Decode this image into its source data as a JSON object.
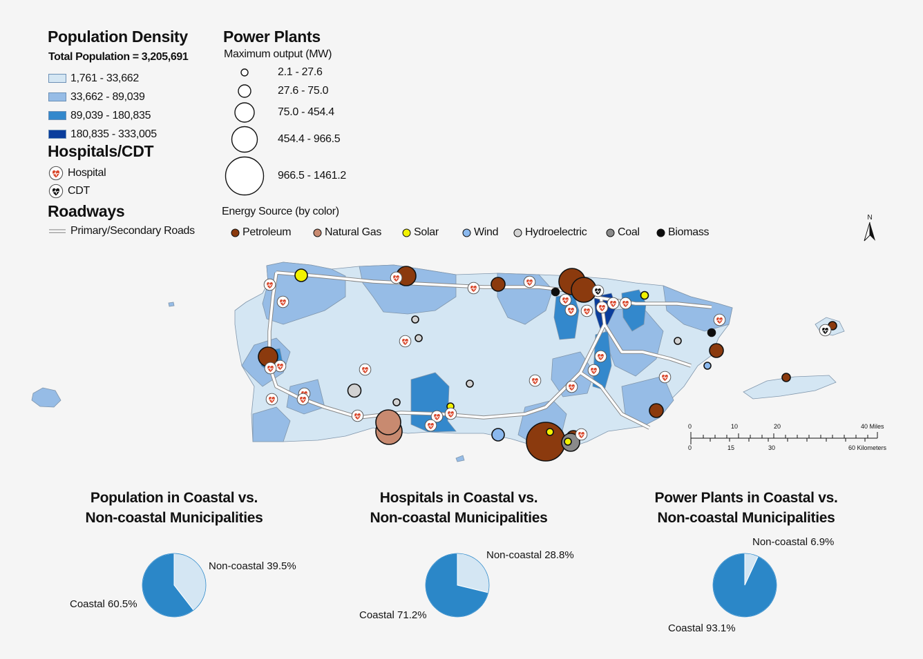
{
  "legend": {
    "population_density": {
      "title": "Population Density",
      "total": "Total Population = 3,205,691",
      "classes": [
        {
          "label": "1,761 - 33,662",
          "color": "#d4e6f3"
        },
        {
          "label": "33,662 - 89,039",
          "color": "#96bce6"
        },
        {
          "label": "89,039 - 180,835",
          "color": "#3388cc"
        },
        {
          "label": "180,835 - 333,005",
          "color": "#0a3d9c"
        }
      ]
    },
    "hospitals": {
      "title": "Hospitals/CDT",
      "items": [
        {
          "label": "Hospital",
          "icon": "hospital-heart-icon"
        },
        {
          "label": "CDT",
          "icon": "cdt-heart-icon"
        }
      ]
    },
    "roadways": {
      "title": "Roadways",
      "items": [
        {
          "label": "Primary/Secondary Roads",
          "icon": "road-line-icon"
        }
      ]
    },
    "power_plants": {
      "title": "Power Plants",
      "subtitle": "Maximum output (MW)",
      "sizes": [
        "2.1 - 27.6",
        "27.6 - 75.0",
        "75.0 - 454.4",
        "454.4 - 966.5",
        "966.5 - 1461.2"
      ]
    },
    "energy_source": {
      "title": "Energy Source (by color)",
      "items": [
        {
          "label": "Petroleum",
          "color": "#8b3a0e"
        },
        {
          "label": "Natural Gas",
          "color": "#c88a70"
        },
        {
          "label": "Solar",
          "color": "#f2f200"
        },
        {
          "label": "Wind",
          "color": "#8ab8ee"
        },
        {
          "label": "Hydroelectric",
          "color": "#d2d2d2"
        },
        {
          "label": "Coal",
          "color": "#8a8a8a"
        },
        {
          "label": "Biomass",
          "color": "#0d0d0d"
        }
      ]
    }
  },
  "north_arrow": {
    "label": "N",
    "icon": "north-arrow-icon"
  },
  "scale_bar": {
    "miles_ticks": [
      "0",
      "10",
      "20",
      "40 Miles"
    ],
    "km_ticks": [
      "0",
      "15",
      "30",
      "60 Kilometers"
    ]
  },
  "charts": {
    "chart_data": [
      {
        "type": "pie",
        "title": "Population in Coastal vs. Non-coastal Municipalities",
        "title_lines": [
          "Population in Coastal vs.",
          "Non-coastal Municipalities"
        ],
        "slices": [
          {
            "name": "Coastal",
            "value": 60.5,
            "label": "Coastal 60.5%",
            "color": "#2b87c8"
          },
          {
            "name": "Non-coastal",
            "value": 39.5,
            "label": "Non-coastal 39.5%",
            "color": "#d4e6f3"
          }
        ]
      },
      {
        "type": "pie",
        "title": "Hospitals in Coastal vs. Non-coastal Municipalities",
        "title_lines": [
          "Hospitals in Coastal vs.",
          "Non-coastal Municipalities"
        ],
        "slices": [
          {
            "name": "Coastal",
            "value": 71.2,
            "label": "Coastal 71.2%",
            "color": "#2b87c8"
          },
          {
            "name": "Non-coastal",
            "value": 28.8,
            "label": "Non-coastal 28.8%",
            "color": "#d4e6f3"
          }
        ]
      },
      {
        "type": "pie",
        "title": "Power Plants in Coastal vs. Non-coastal Municipalities",
        "title_lines": [
          "Power Plants in Coastal vs.",
          "Non-coastal Municipalities"
        ],
        "slices": [
          {
            "name": "Coastal",
            "value": 93.1,
            "label": "Coastal 93.1%",
            "color": "#2b87c8"
          },
          {
            "name": "Non-coastal",
            "value": 6.9,
            "label": "Non-coastal 6.9%",
            "color": "#d4e6f3"
          }
        ]
      }
    ]
  }
}
